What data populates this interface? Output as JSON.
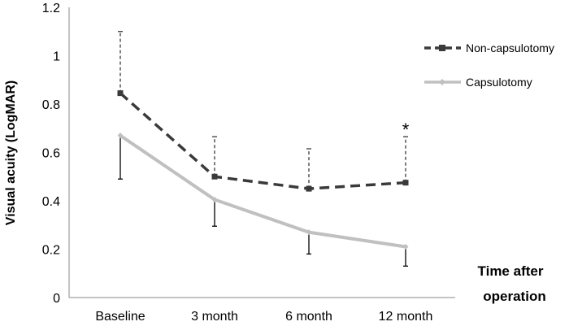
{
  "chart_data": {
    "type": "line",
    "xlabel_line1": "Time after",
    "xlabel_line2": "operation",
    "ylabel": "Visual acuity (LogMAR)",
    "categories": [
      "Baseline",
      "3 month",
      "6 month",
      "12 month"
    ],
    "ylim": [
      0,
      1.2
    ],
    "yticks": [
      "0",
      "0.2",
      "0.4",
      "0.6",
      "0.8",
      "1",
      "1.2"
    ],
    "ytick_values": [
      0,
      0.2,
      0.4,
      0.6,
      0.8,
      1.0,
      1.2
    ],
    "grid": false,
    "legend_position": "top-right",
    "series": [
      {
        "name": "Non-capsulotomy",
        "values": [
          0.845,
          0.5,
          0.45,
          0.475
        ],
        "error_upper": [
          1.1,
          0.665,
          0.615,
          0.665
        ],
        "error_style": "dashed",
        "color": "#3a3a3a",
        "marker": "square",
        "line_style": "dashed"
      },
      {
        "name": "Capsulotomy",
        "values": [
          0.67,
          0.405,
          0.27,
          0.21
        ],
        "error_lower": [
          0.49,
          0.295,
          0.18,
          0.13
        ],
        "error_style": "solid",
        "color": "#c0c0c0",
        "marker": "diamond",
        "line_style": "solid"
      }
    ],
    "annotations": [
      {
        "text": "*",
        "category": "12 month"
      }
    ]
  }
}
